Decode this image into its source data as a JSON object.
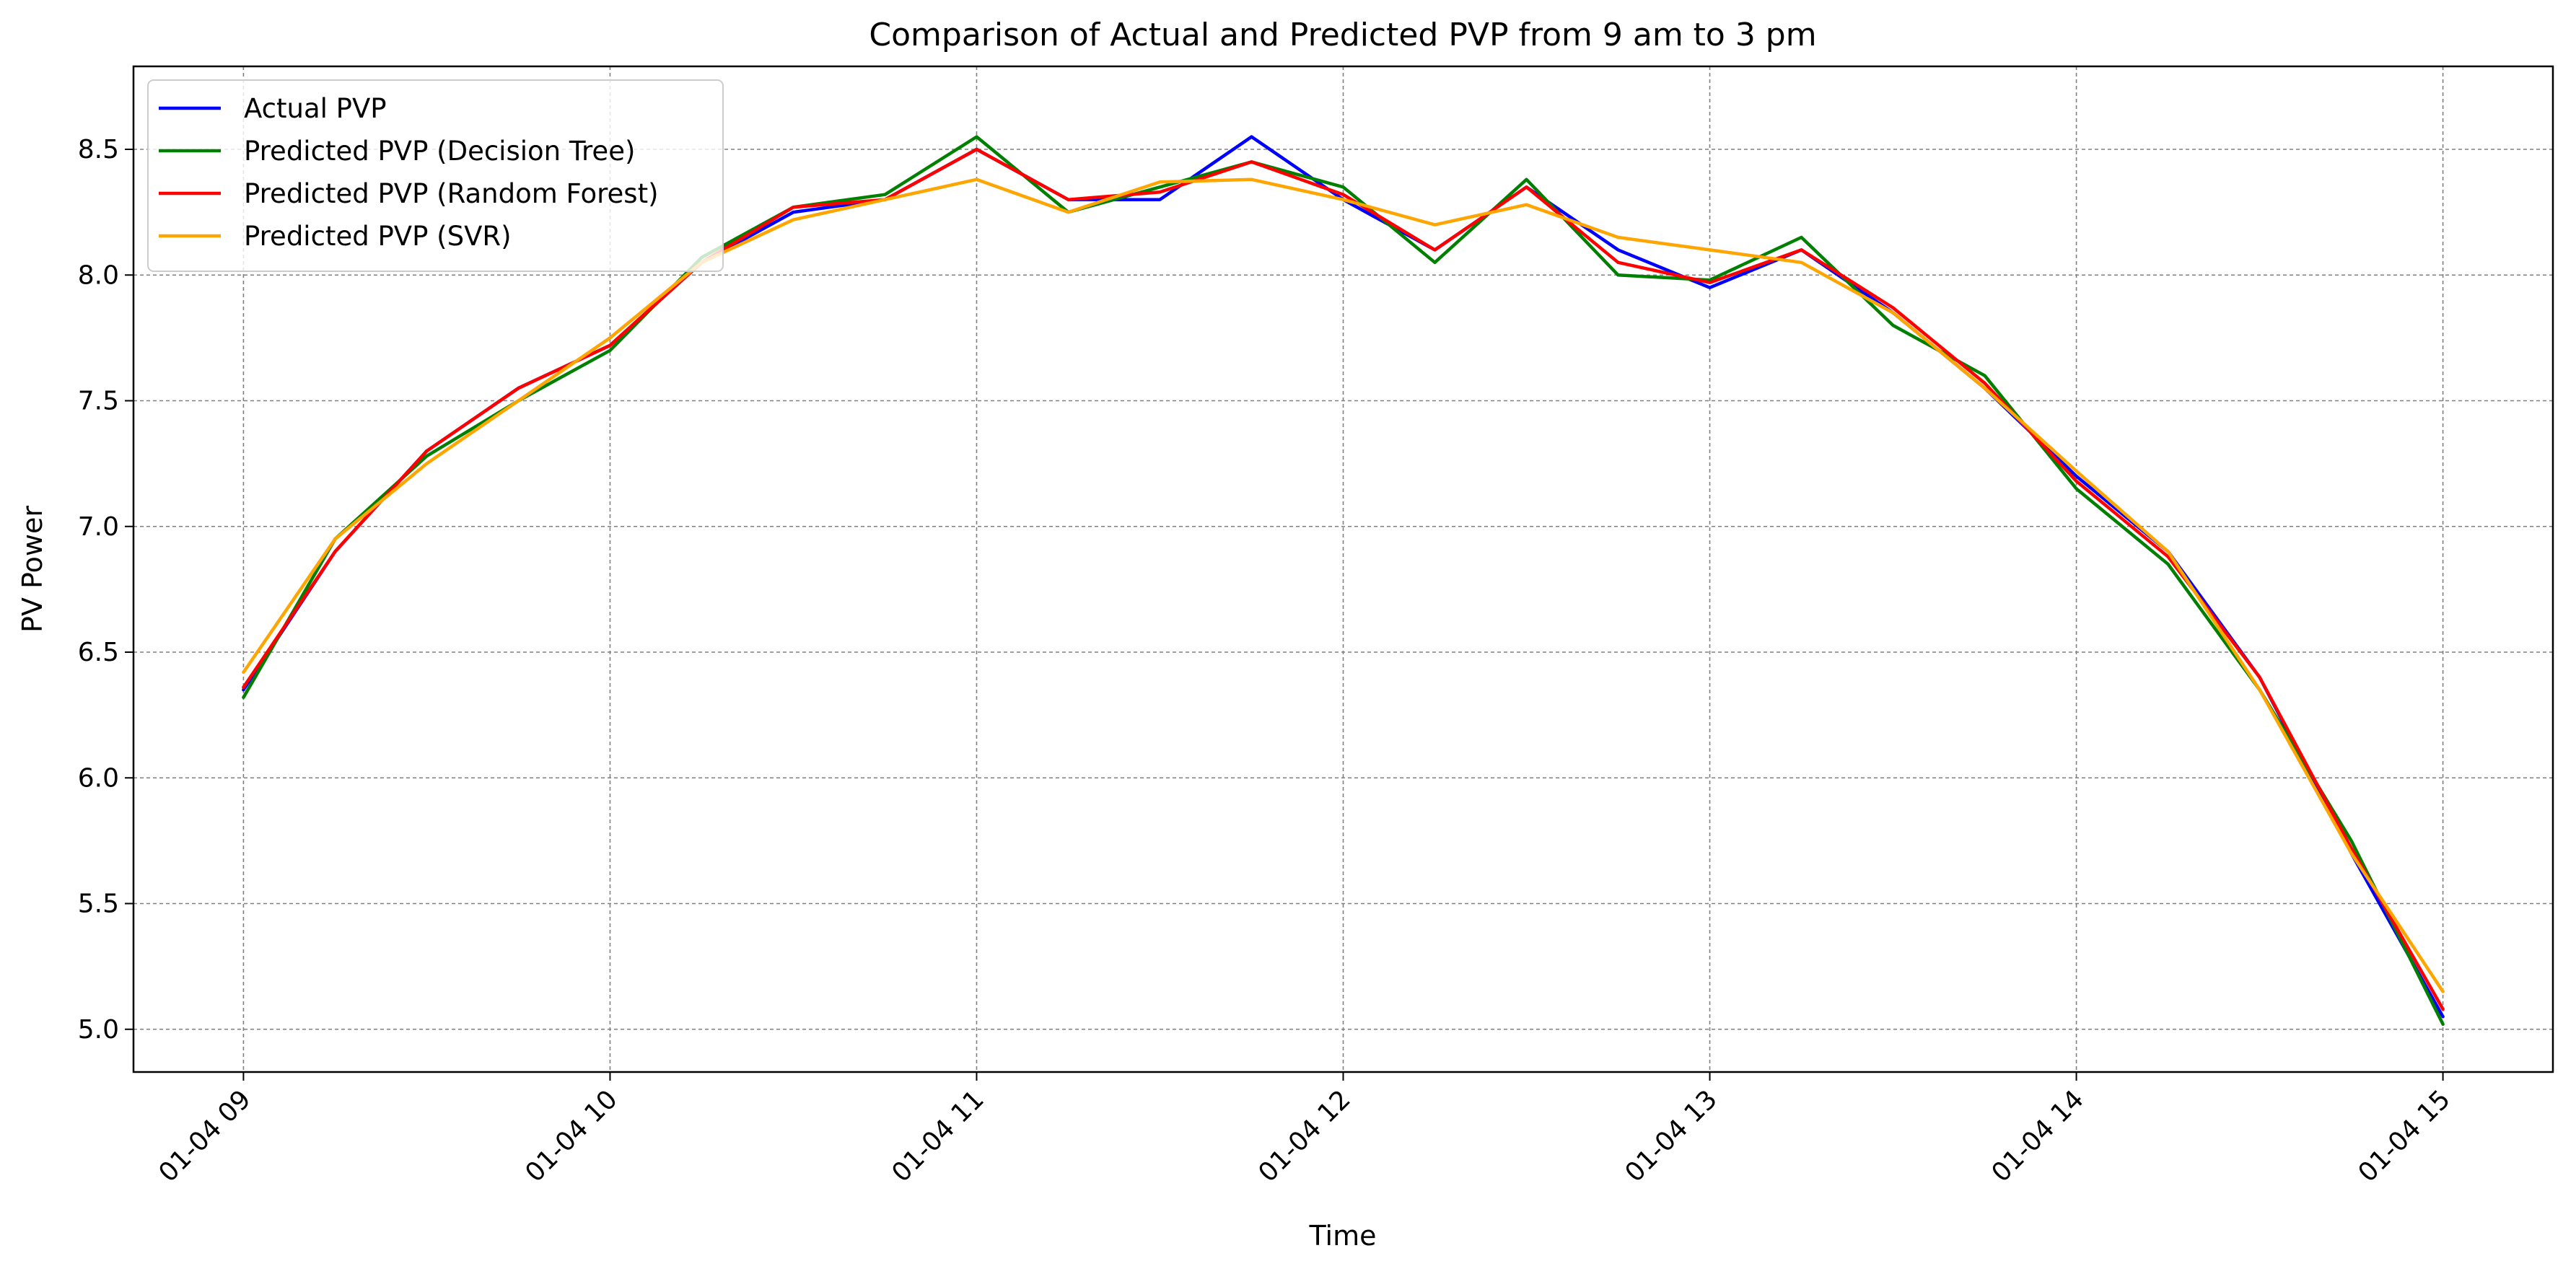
{
  "chart_data": {
    "type": "line",
    "title": "Comparison of Actual and Predicted PVP from 9 am to 3 pm",
    "xlabel": "Time",
    "ylabel": "PV Power",
    "x_ticks": [
      "01-04 09",
      "01-04 10",
      "01-04 11",
      "01-04 12",
      "01-04 13",
      "01-04 14",
      "01-04 15"
    ],
    "y_ticks": [
      "5.0",
      "5.5",
      "6.0",
      "6.5",
      "7.0",
      "7.5",
      "8.0",
      "8.5"
    ],
    "xlim": [
      "01-04 08:42",
      "01-04 15:18"
    ],
    "ylim": [
      4.83,
      8.83
    ],
    "grid": true,
    "legend_position": "top-left",
    "x": [
      "01-04 09:00",
      "01-04 09:15",
      "01-04 09:30",
      "01-04 09:45",
      "01-04 10:00",
      "01-04 10:15",
      "01-04 10:30",
      "01-04 10:45",
      "01-04 11:00",
      "01-04 11:15",
      "01-04 11:30",
      "01-04 11:45",
      "01-04 12:00",
      "01-04 12:15",
      "01-04 12:30",
      "01-04 12:45",
      "01-04 13:00",
      "01-04 13:15",
      "01-04 13:30",
      "01-04 13:45",
      "01-04 14:00",
      "01-04 14:15",
      "01-04 14:30",
      "01-04 14:45",
      "01-04 15:00"
    ],
    "series": [
      {
        "name": "Actual PVP",
        "color": "#0000ff",
        "values": [
          6.35,
          6.9,
          7.3,
          7.55,
          7.72,
          8.05,
          8.25,
          8.3,
          8.5,
          8.3,
          8.3,
          8.55,
          8.3,
          8.1,
          8.35,
          8.1,
          7.95,
          8.1,
          7.85,
          7.55,
          7.2,
          6.9,
          6.4,
          5.7,
          5.05
        ]
      },
      {
        "name": "Predicted PVP (Decision Tree)",
        "color": "#008000",
        "values": [
          6.32,
          6.95,
          7.28,
          7.5,
          7.7,
          8.07,
          8.27,
          8.32,
          8.55,
          8.25,
          8.35,
          8.45,
          8.35,
          8.05,
          8.38,
          8.0,
          7.98,
          8.15,
          7.8,
          7.6,
          7.15,
          6.85,
          6.35,
          5.75,
          5.02
        ]
      },
      {
        "name": "Predicted PVP (Random Forest)",
        "color": "#ff0000",
        "values": [
          6.36,
          6.9,
          7.3,
          7.55,
          7.72,
          8.05,
          8.27,
          8.3,
          8.5,
          8.3,
          8.33,
          8.45,
          8.32,
          8.1,
          8.35,
          8.05,
          7.97,
          8.1,
          7.87,
          7.57,
          7.18,
          6.88,
          6.4,
          5.72,
          5.08
        ]
      },
      {
        "name": "Predicted PVP (SVR)",
        "color": "#ffa500",
        "values": [
          6.42,
          6.95,
          7.25,
          7.5,
          7.75,
          8.05,
          8.22,
          8.3,
          8.38,
          8.25,
          8.37,
          8.38,
          8.3,
          8.2,
          8.28,
          8.15,
          8.1,
          8.05,
          7.85,
          7.55,
          7.22,
          6.9,
          6.35,
          5.7,
          5.15
        ]
      }
    ]
  }
}
